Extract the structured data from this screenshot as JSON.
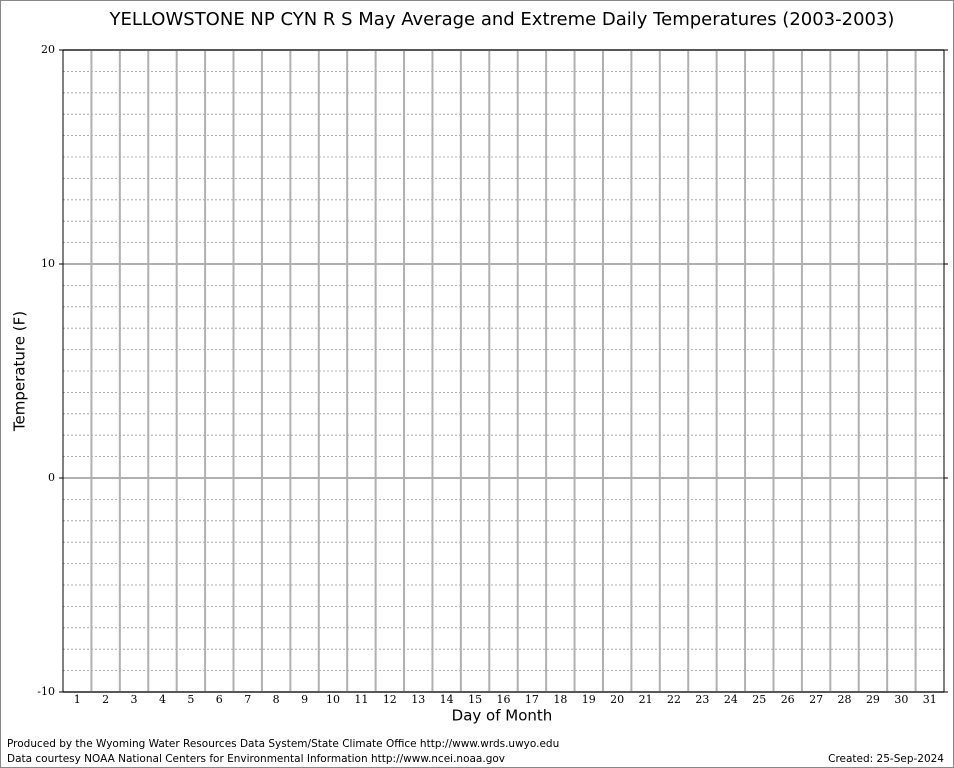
{
  "chart_data": {
    "type": "line",
    "title": "YELLOWSTONE NP CYN R S May Average and Extreme Daily Temperatures (2003-2003)",
    "x_label": "Day of Month",
    "y_label": "Temperature (F)",
    "categories": [
      "1",
      "2",
      "3",
      "4",
      "5",
      "6",
      "7",
      "8",
      "9",
      "10",
      "11",
      "12",
      "13",
      "14",
      "15",
      "16",
      "17",
      "18",
      "19",
      "20",
      "21",
      "22",
      "23",
      "24",
      "25",
      "26",
      "27",
      "28",
      "29",
      "30",
      "31"
    ],
    "series": [],
    "ylim": [
      -10,
      20
    ],
    "yticks": [
      -10,
      0,
      10,
      20
    ],
    "grid": true,
    "footer_left": [
      "Produced by the Wyoming Water Resources Data System/State Climate Office http://www.wrds.uwyo.edu",
      "Data courtesy NOAA National Centers for Environmental Information http://www.ncei.noaa.gov"
    ],
    "footer_right": "Created:  25-Sep-2024"
  }
}
